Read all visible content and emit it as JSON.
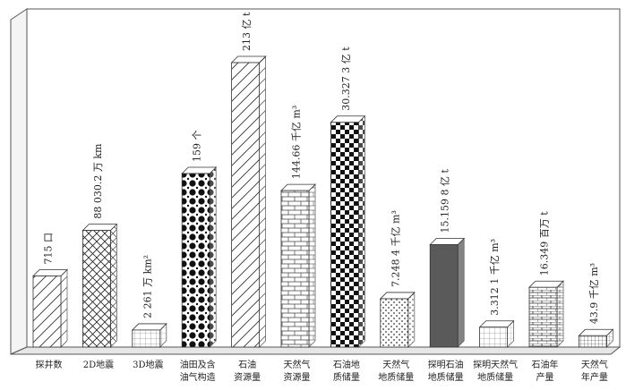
{
  "chart_data": {
    "type": "bar",
    "title": "",
    "xlabel": "",
    "ylabel": "",
    "categories": [
      [
        "探井数"
      ],
      [
        "2D地震"
      ],
      [
        "3D地震"
      ],
      [
        "油田及含",
        "油气构造"
      ],
      [
        "石油",
        "资源量"
      ],
      [
        "天然气",
        "资源量"
      ],
      [
        "石油地",
        "质储量"
      ],
      [
        "天然气",
        "地质储量"
      ],
      [
        "探明石油",
        "地质储量"
      ],
      [
        "探明天然气",
        "地质储量"
      ],
      [
        "石油年",
        "产量"
      ],
      [
        "天然气",
        "年产量"
      ]
    ],
    "values": [
      715,
      88030.2,
      2261,
      159,
      213,
      144.66,
      30.3273,
      7.2484,
      15.1598,
      3.3121,
      16.349,
      43.9
    ],
    "value_labels": [
      "715 口",
      "88 030.2 万 km",
      "2 261 万 km²",
      "159 个",
      "213 亿 t",
      "144.66 千亿 m³",
      "30.327 3 亿 t",
      "7.248 4 千亿 m³",
      "15.159 8 亿 t",
      "3.312 1 千亿 m³",
      "16.349 百万 t",
      "43.9 千亿 m³"
    ],
    "relative_heights": [
      0.25,
      0.41,
      0.06,
      0.61,
      1.0,
      0.55,
      0.79,
      0.17,
      0.36,
      0.07,
      0.21,
      0.04
    ],
    "patterns": [
      "diagonal",
      "crosshatch",
      "grid-light",
      "dots",
      "diagonal",
      "brick",
      "checker",
      "dots-sparse",
      "solid",
      "grid-light",
      "brick-dense",
      "grid-fine"
    ],
    "grid": false,
    "legend": "none"
  }
}
